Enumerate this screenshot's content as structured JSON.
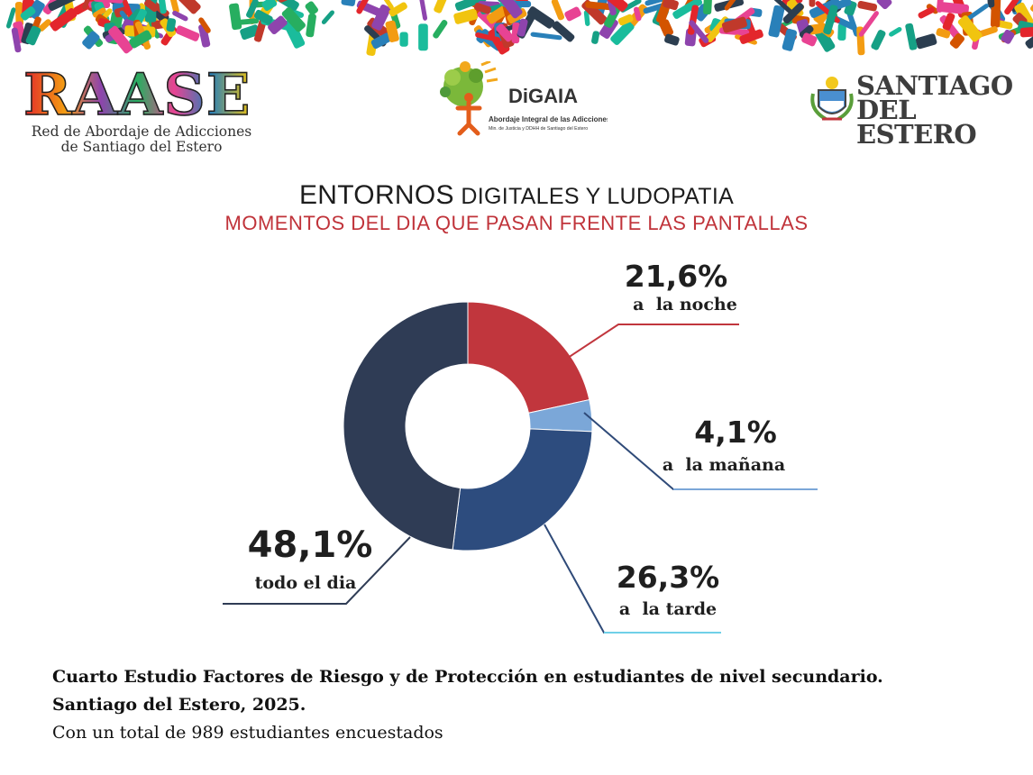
{
  "header": {
    "raase": {
      "acronym": "RAASE",
      "line1": "Red de Abordaje de Adicciones",
      "line2": "de Santiago del Estero"
    },
    "digaia": {
      "name": "DiGAIA",
      "line1": "Abordaje Integral de las Adicciones",
      "line2": "Min. de Justicia y DDHH de Santiago del Estero"
    },
    "santiago": {
      "line1": "SANTIAGO",
      "line2": "DEL ESTERO"
    }
  },
  "title": {
    "big": "ENTORNOS",
    "rest": "DIGITALES Y LUDOPATIA"
  },
  "subtitle": "MOMENTOS DEL DIA QUE PASAN FRENTE LAS PANTALLAS",
  "chart_data": {
    "type": "pie",
    "variant": "donut",
    "title": "MOMENTOS DEL DIA QUE PASAN FRENTE LAS PANTALLAS",
    "categories": [
      "a  la noche",
      "a  la mañana",
      "a  la tarde",
      "todo el dia"
    ],
    "values": [
      21.6,
      4.1,
      26.3,
      48.1
    ],
    "display_values": [
      "21,6%",
      "4,1%",
      "26,3%",
      "48,1%"
    ],
    "colors": [
      "#c1363d",
      "#7ba7d8",
      "#2d4c7e",
      "#2f3c55"
    ],
    "leader_colors": [
      "#c1363d",
      "#7ba7d8",
      "#6fd0e8",
      "#2f3c55"
    ],
    "unit": "%"
  },
  "footer": {
    "line1": "Cuarto Estudio Factores de Riesgo y de Protección en estudiantes de nivel secundario.",
    "line2": "Santiago del Estero, 2025.",
    "line3": "Con un total de 989 estudiantes encuestados"
  }
}
